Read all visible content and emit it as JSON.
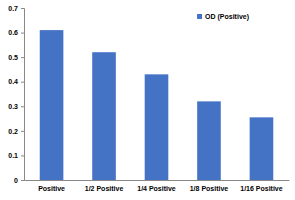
{
  "chart_data": {
    "type": "bar",
    "categories": [
      "Positive",
      "1/2 Positive",
      "1/4 Positive",
      "1/8 Positive",
      "1/16 Positive"
    ],
    "series": [
      {
        "name": "OD (Positive)",
        "color": "#4472c4",
        "values": [
          0.61,
          0.52,
          0.43,
          0.32,
          0.255
        ]
      }
    ],
    "ylim": [
      0,
      0.7
    ],
    "yticks": [
      0,
      0.1,
      0.2,
      0.3,
      0.4,
      0.5,
      0.6,
      0.7
    ],
    "grid": false,
    "legend": "top-right"
  }
}
